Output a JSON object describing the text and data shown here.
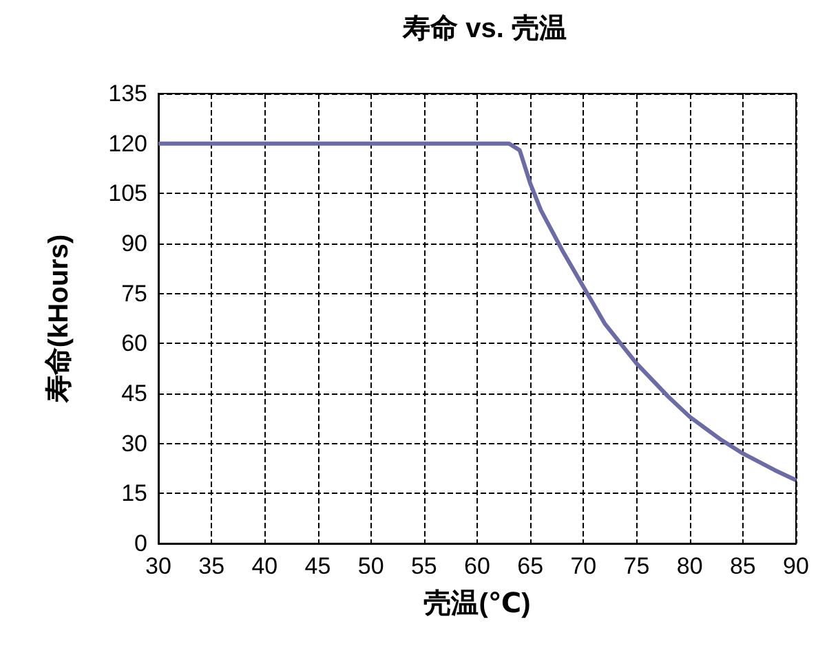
{
  "chart_data": {
    "type": "line",
    "title": "寿命 vs. 壳温",
    "xlabel": "壳温(℃)",
    "ylabel": "寿命(kHours)",
    "x": [
      30,
      40,
      50,
      60,
      63,
      64,
      65,
      66,
      67,
      68,
      70,
      72,
      75,
      78,
      80,
      83,
      85,
      88,
      90
    ],
    "series": [
      {
        "color": "#6b6ba8",
        "values": [
          120,
          120,
          120,
          120,
          120,
          118,
          108,
          100,
          94,
          88,
          77,
          66,
          54,
          44,
          38,
          31,
          27,
          22,
          19
        ]
      }
    ],
    "xlim": [
      30,
      90
    ],
    "xticks": [
      30,
      35,
      40,
      45,
      50,
      55,
      60,
      65,
      70,
      75,
      80,
      85,
      90
    ],
    "ylim": [
      0,
      135
    ],
    "yticks": [
      0,
      15,
      30,
      45,
      60,
      75,
      90,
      105,
      120,
      135
    ],
    "grid": true,
    "marker": "none",
    "line_style": "solid"
  }
}
